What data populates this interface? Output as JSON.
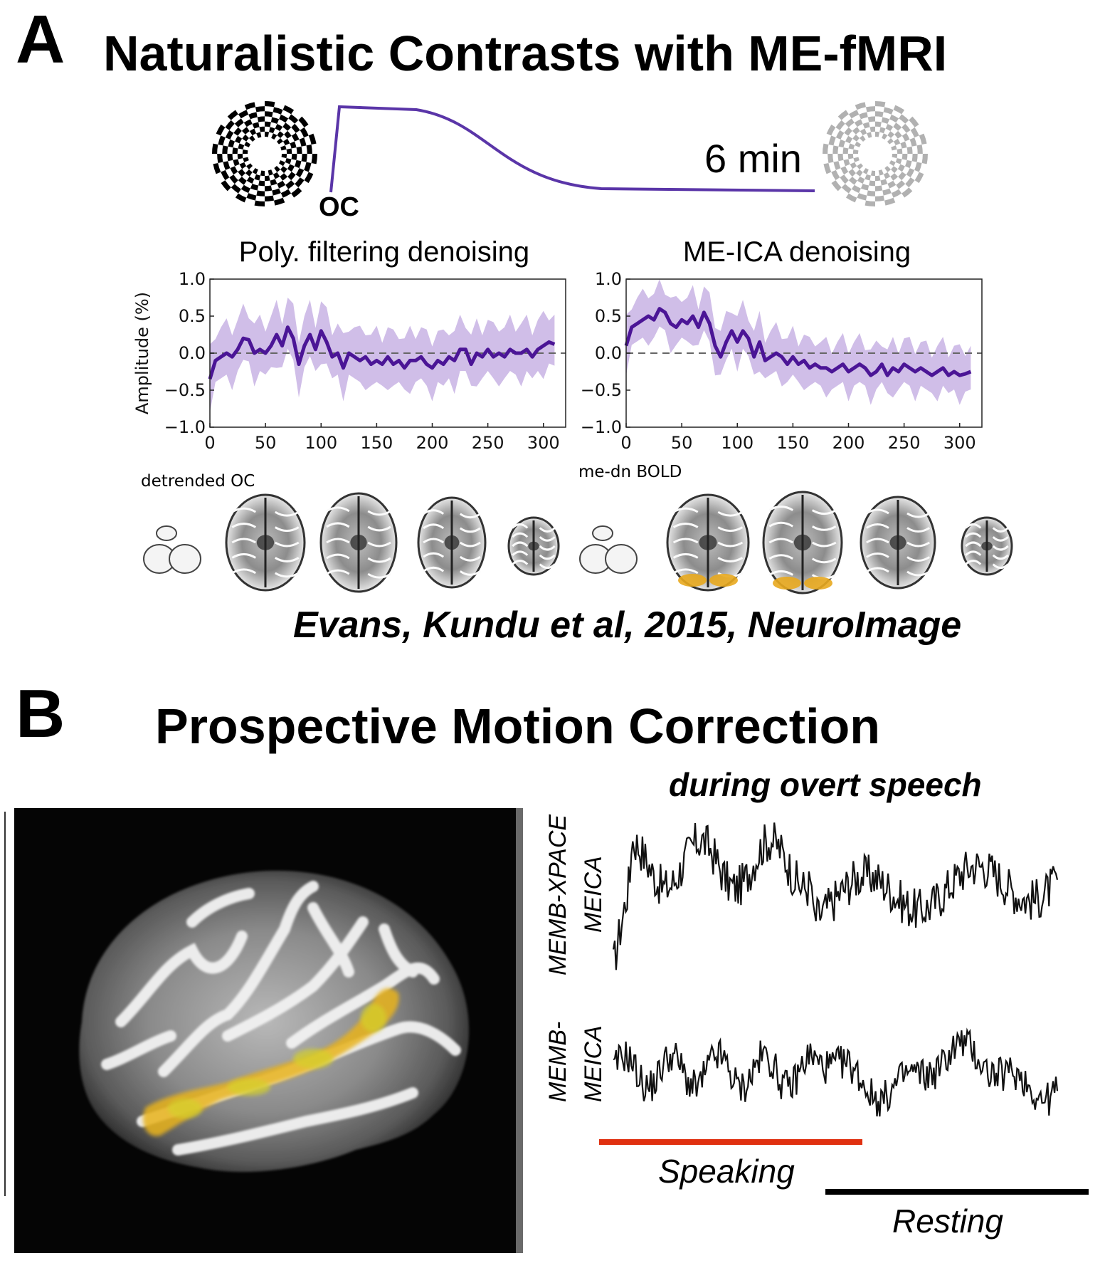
{
  "panel_a": {
    "letter": "A",
    "title": "Naturalistic Contrasts with ME-fMRI",
    "curve_label_start": "OC",
    "curve_label_end": "6 min",
    "brain_label_left": "detrended OC",
    "brain_label_right": "me-dn BOLD",
    "citation": "Evans, Kundu et al, 2015, NeuroImage"
  },
  "panel_b": {
    "letter": "B",
    "title": "Prospective Motion Correction",
    "subtitle": "during overt speech",
    "trace1_label_line1": "MEMB-XPACE",
    "trace1_label_line2": "MEICA",
    "trace2_label_line1": "MEMB-",
    "trace2_label_line2": "MEICA",
    "speaking_label": "Speaking",
    "resting_label": "Resting",
    "speaking_color": "#e03010",
    "resting_color": "#000000"
  },
  "colors": {
    "series": "#4b1596",
    "band": "#c4aee2",
    "zero_line": "#666666",
    "activation": "#e8a81e"
  },
  "chart_data": [
    {
      "type": "line",
      "title": "Poly. filtering denoising",
      "xlabel": "",
      "ylabel": "Amplitude (%)",
      "xlim": [
        0,
        320
      ],
      "ylim": [
        -1.0,
        1.0
      ],
      "xticks": [
        "0",
        "50",
        "100",
        "150",
        "200",
        "250",
        "300"
      ],
      "yticks": [
        "1.0",
        "0.5",
        "0.0",
        "−0.5",
        "−1.0"
      ],
      "x": [
        0,
        5,
        10,
        15,
        20,
        25,
        30,
        35,
        40,
        45,
        50,
        55,
        60,
        65,
        70,
        75,
        80,
        85,
        90,
        95,
        100,
        105,
        110,
        115,
        120,
        125,
        130,
        135,
        140,
        145,
        150,
        155,
        160,
        165,
        170,
        175,
        180,
        185,
        190,
        195,
        200,
        205,
        210,
        215,
        220,
        225,
        230,
        235,
        240,
        245,
        250,
        255,
        260,
        265,
        270,
        275,
        280,
        285,
        290,
        295,
        300,
        305,
        310
      ],
      "series": [
        {
          "name": "",
          "values": [
            -0.35,
            -0.1,
            -0.05,
            0.0,
            -0.05,
            0.05,
            0.2,
            0.18,
            0.0,
            0.05,
            0.0,
            0.1,
            0.25,
            0.1,
            0.35,
            0.2,
            -0.15,
            0.1,
            0.25,
            0.05,
            0.3,
            0.15,
            -0.05,
            0.0,
            -0.2,
            0.0,
            -0.05,
            -0.1,
            -0.05,
            -0.15,
            -0.1,
            -0.15,
            -0.05,
            -0.15,
            -0.1,
            -0.2,
            -0.1,
            -0.1,
            -0.05,
            -0.15,
            -0.2,
            -0.1,
            -0.15,
            -0.05,
            -0.1,
            0.05,
            0.05,
            -0.15,
            0.0,
            -0.05,
            0.05,
            -0.05,
            0.0,
            -0.05,
            0.05,
            0.0,
            0.0,
            0.05,
            -0.05,
            0.05,
            0.1,
            0.15,
            0.12
          ],
          "band": 0.35
        }
      ],
      "grid": false
    },
    {
      "type": "line",
      "title": "ME-ICA denoising",
      "xlabel": "",
      "ylabel": "",
      "xlim": [
        0,
        320
      ],
      "ylim": [
        -1.0,
        1.0
      ],
      "xticks": [
        "0",
        "50",
        "100",
        "150",
        "200",
        "250",
        "300"
      ],
      "yticks": [
        "1.0",
        "0.5",
        "0.0",
        "−0.5",
        "−1.0"
      ],
      "x": [
        0,
        5,
        10,
        15,
        20,
        25,
        30,
        35,
        40,
        45,
        50,
        55,
        60,
        65,
        70,
        75,
        80,
        85,
        90,
        95,
        100,
        105,
        110,
        115,
        120,
        125,
        130,
        135,
        140,
        145,
        150,
        155,
        160,
        165,
        170,
        175,
        180,
        185,
        190,
        195,
        200,
        205,
        210,
        215,
        220,
        225,
        230,
        235,
        240,
        245,
        250,
        255,
        260,
        265,
        270,
        275,
        280,
        285,
        290,
        295,
        300,
        305,
        310
      ],
      "series": [
        {
          "name": "",
          "values": [
            0.1,
            0.35,
            0.4,
            0.45,
            0.5,
            0.45,
            0.6,
            0.55,
            0.4,
            0.35,
            0.45,
            0.4,
            0.5,
            0.35,
            0.55,
            0.4,
            0.1,
            -0.05,
            0.15,
            0.3,
            0.15,
            0.3,
            0.2,
            -0.05,
            0.15,
            -0.1,
            -0.05,
            0.0,
            -0.05,
            -0.15,
            -0.05,
            -0.15,
            -0.1,
            -0.2,
            -0.15,
            -0.2,
            -0.2,
            -0.25,
            -0.2,
            -0.15,
            -0.25,
            -0.2,
            -0.15,
            -0.2,
            -0.3,
            -0.25,
            -0.15,
            -0.3,
            -0.2,
            -0.25,
            -0.15,
            -0.2,
            -0.25,
            -0.2,
            -0.25,
            -0.3,
            -0.25,
            -0.2,
            -0.3,
            -0.25,
            -0.3,
            -0.28,
            -0.25
          ],
          "band": 0.3
        }
      ],
      "grid": false
    }
  ]
}
